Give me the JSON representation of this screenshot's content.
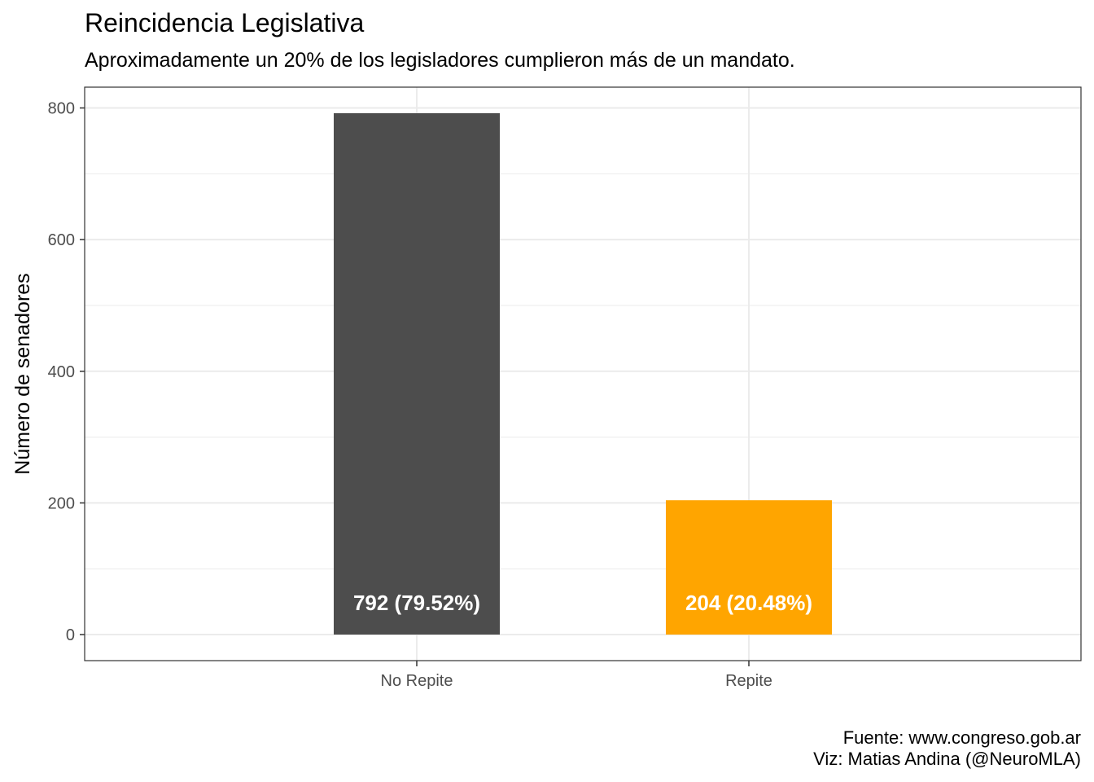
{
  "chart_data": {
    "type": "bar",
    "title": "Reincidencia Legislativa",
    "subtitle": "Aproximadamente un 20% de los legisladores cumplieron más de un mandato.",
    "xlabel": "",
    "ylabel": "Número de senadores",
    "categories": [
      "No Repite",
      "Repite"
    ],
    "values": [
      792,
      204
    ],
    "bar_labels": [
      "792 (79.52%)",
      "204 (20.48%)"
    ],
    "colors": [
      "#4d4d4d",
      "#ffa500"
    ],
    "yticks": [
      0,
      200,
      400,
      600,
      800
    ],
    "ytick_labels": [
      "0",
      "200",
      "400",
      "600",
      "800"
    ],
    "ylim": [
      -39.6,
      831.6
    ],
    "grid": true,
    "caption_lines": [
      "Fuente: www.congreso.gob.ar",
      "Viz: Matias Andina (@NeuroMLA)"
    ]
  }
}
